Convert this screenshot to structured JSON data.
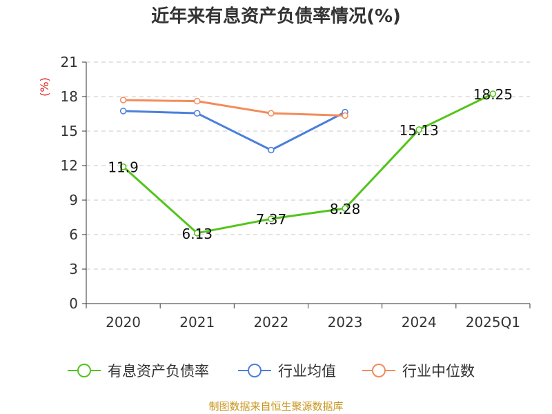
{
  "chart_data": {
    "type": "line",
    "title": "近年来有息资产负债率情况(%)",
    "ylabel": "(%)",
    "xlabel": "",
    "categories": [
      "2020",
      "2021",
      "2022",
      "2023",
      "2024",
      "2025Q1"
    ],
    "ylim": [
      0,
      21
    ],
    "yticks": [
      0,
      3,
      6,
      9,
      12,
      15,
      18,
      21
    ],
    "grid": "horizontal dashed",
    "legend_position": "bottom",
    "series": [
      {
        "name": "有息资产负债率",
        "color": "#52c41a",
        "values": [
          11.9,
          6.13,
          7.37,
          8.28,
          15.13,
          18.25
        ],
        "labels": [
          "11.9",
          "6.13",
          "7.37",
          "8.28",
          "15.13",
          "18.25"
        ]
      },
      {
        "name": "行业均值",
        "color": "#4a7fdc",
        "values": [
          16.75,
          16.55,
          13.35,
          16.65,
          null,
          null
        ]
      },
      {
        "name": "行业中位数",
        "color": "#f28c5a",
        "values": [
          17.7,
          17.6,
          16.55,
          16.35,
          null,
          null
        ]
      }
    ]
  },
  "source": "制图数据来自恒生聚源数据库",
  "colors": {
    "axis": "#333333",
    "grid": "#c8c8c8",
    "ylabel": "#e02020"
  }
}
